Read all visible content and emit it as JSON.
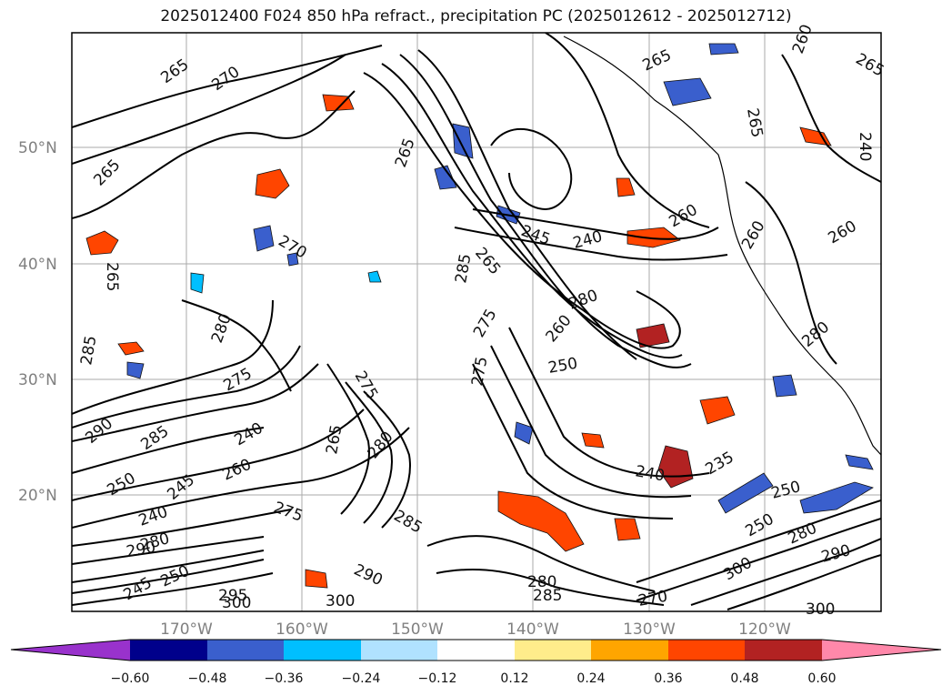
{
  "title": "2025012400 F024 850 hPa refract., precipitation PC (2025012612 - 2025012712)",
  "lat_labels": [
    "50°N",
    "40°N",
    "30°N",
    "20°N"
  ],
  "lon_labels": [
    "170°W",
    "160°W",
    "150°W",
    "140°W",
    "130°W",
    "120°W"
  ],
  "colorbar": {
    "colors": [
      "#9932cc",
      "#00008b",
      "#3a5fcd",
      "#00bfff",
      "#b0e2ff",
      "#ffffff",
      "#ffec8b",
      "#ffa500",
      "#ff4500",
      "#b22222",
      "#ff88aa"
    ],
    "tick_labels": [
      "−0.60",
      "−0.48",
      "−0.36",
      "−0.24",
      "−0.12",
      "0.12",
      "0.24",
      "0.36",
      "0.48",
      "0.60"
    ]
  },
  "contour_labels": [
    "265",
    "270",
    "265",
    "265",
    "270",
    "265",
    "280",
    "290",
    "285",
    "240",
    "245",
    "250",
    "240",
    "280",
    "290",
    "250",
    "245",
    "275",
    "275",
    "265",
    "280",
    "260",
    "275",
    "265",
    "260",
    "240",
    "245",
    "285",
    "285",
    "265",
    "250",
    "275",
    "280",
    "260",
    "265",
    "260",
    "240",
    "260",
    "260",
    "280",
    "235",
    "240",
    "250",
    "280",
    "290",
    "250",
    "300",
    "270",
    "285",
    "300",
    "290",
    "300",
    "295",
    "300",
    "280",
    "275",
    "265",
    "285"
  ]
}
